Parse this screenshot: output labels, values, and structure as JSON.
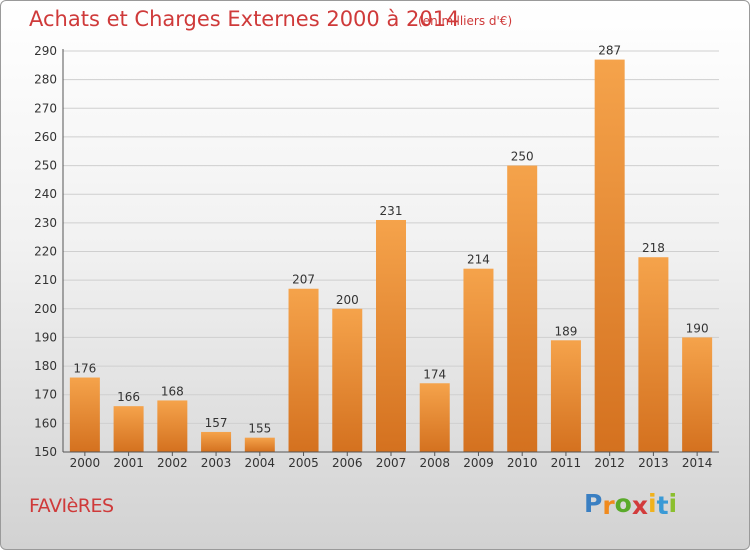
{
  "header": {
    "title": "Achats et Charges Externes 2000 à 2014",
    "subtitle": "(en milliers d'€)"
  },
  "footer": {
    "commune": "FAVIèRES",
    "logo_letters": [
      "P",
      "r",
      "o",
      "x",
      "i",
      "t",
      "i"
    ],
    "logo_colors": [
      "#3a7fc2",
      "#f08a1d",
      "#5aaa2a",
      "#d23b3b",
      "#f0b21d",
      "#3a9ad6",
      "#8bbf2e"
    ]
  },
  "chart_data": {
    "type": "bar",
    "title": "Achats et Charges Externes 2000 à 2014",
    "subtitle": "(en milliers d'€)",
    "categories": [
      "2000",
      "2001",
      "2002",
      "2003",
      "2004",
      "2005",
      "2006",
      "2007",
      "2008",
      "2009",
      "2010",
      "2011",
      "2012",
      "2013",
      "2014"
    ],
    "values": [
      176,
      166,
      168,
      157,
      155,
      207,
      200,
      231,
      174,
      214,
      250,
      189,
      287,
      218,
      190
    ],
    "ylim": [
      150,
      290
    ],
    "yticks": [
      150,
      160,
      170,
      180,
      190,
      200,
      210,
      220,
      230,
      240,
      250,
      260,
      270,
      280,
      290
    ],
    "grid": true,
    "bar_color_top": "#f5a34b",
    "bar_color_bottom": "#d4711f"
  }
}
